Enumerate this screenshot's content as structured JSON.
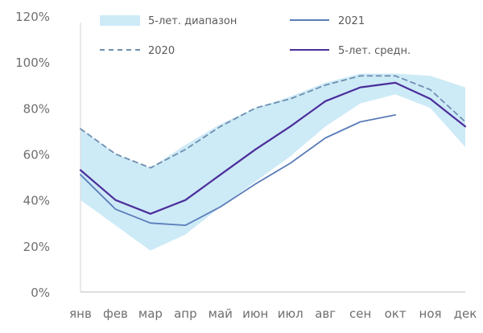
{
  "chart_data": {
    "type": "line",
    "title": "",
    "xlabel": "",
    "ylabel": "",
    "categories": [
      "янв",
      "фев",
      "мар",
      "апр",
      "май",
      "июн",
      "июл",
      "авг",
      "сен",
      "окт",
      "ноя",
      "дек"
    ],
    "ylim": [
      0,
      120
    ],
    "y_ticks": [
      "0%",
      "20%",
      "40%",
      "60%",
      "80%",
      "100%",
      "120%"
    ],
    "y_tick_values": [
      0,
      20,
      40,
      60,
      80,
      100,
      120
    ],
    "grid": false,
    "legend_position": "top",
    "range_band": {
      "name": "5-лет. диапазон",
      "color": "#cdeaf7",
      "low": [
        40,
        29,
        18,
        25,
        37,
        48,
        59,
        72,
        82,
        86,
        80,
        63
      ],
      "high": [
        71,
        60,
        54,
        64,
        73,
        80,
        85,
        91,
        95,
        95,
        94,
        89
      ]
    },
    "series": [
      {
        "name": "2021",
        "color": "#5b7db8",
        "style": "solid",
        "values": [
          51,
          36,
          30,
          29,
          37,
          47,
          56,
          67,
          74,
          77,
          null,
          null
        ]
      },
      {
        "name": "2020",
        "color": "#6f8fb0",
        "style": "dashed",
        "values": [
          71,
          60,
          54,
          62,
          72,
          80,
          84,
          90,
          94,
          94,
          88,
          74
        ]
      },
      {
        "name": "5-лет. средн.",
        "color": "#4b2d9a",
        "style": "solid",
        "values": [
          53,
          40,
          34,
          40,
          51,
          62,
          72,
          83,
          89,
          91,
          84,
          72
        ]
      }
    ]
  }
}
